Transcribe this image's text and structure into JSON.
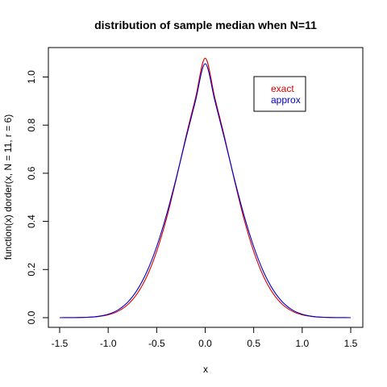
{
  "chart_data": {
    "type": "line",
    "title": "distribution of sample median when N=11",
    "xlabel": "x",
    "ylabel": "function(x) dorder(x, N = 11, r = 6)",
    "xlim": [
      -1.5,
      1.5
    ],
    "ylim": [
      0.0,
      1.1
    ],
    "x_ticks": [
      -1.5,
      -1.0,
      -0.5,
      0.0,
      0.5,
      1.0,
      1.5
    ],
    "x_tick_labels": [
      "-1.5",
      "-1.0",
      "-0.5",
      "0.0",
      "0.5",
      "1.0",
      "1.5"
    ],
    "y_ticks": [
      0.0,
      0.2,
      0.4,
      0.6,
      0.8,
      1.0
    ],
    "y_tick_labels": [
      "0.0",
      "0.2",
      "0.4",
      "0.6",
      "0.8",
      "1.0"
    ],
    "grid": false,
    "legend_position": "top-right",
    "x": [
      -1.5,
      -1.4,
      -1.3,
      -1.2,
      -1.1,
      -1.0,
      -0.9,
      -0.8,
      -0.7,
      -0.6,
      -0.5,
      -0.4,
      -0.3,
      -0.2,
      -0.1,
      0.0,
      0.1,
      0.2,
      0.3,
      0.4,
      0.5,
      0.6,
      0.7,
      0.8,
      0.9,
      1.0,
      1.1,
      1.2,
      1.3,
      1.4,
      1.5
    ],
    "series": [
      {
        "name": "exact",
        "color": "#dd0000",
        "values": [
          0.0,
          0.0002,
          0.0006,
          0.0018,
          0.0048,
          0.0118,
          0.0262,
          0.0535,
          0.1003,
          0.1724,
          0.2753,
          0.4102,
          0.5731,
          0.7494,
          0.9123,
          1.078,
          0.9123,
          0.7494,
          0.5731,
          0.4102,
          0.2753,
          0.1724,
          0.1003,
          0.0535,
          0.0262,
          0.0118,
          0.0048,
          0.0018,
          0.0006,
          0.0002,
          0.0
        ]
      },
      {
        "name": "approx",
        "color": "#0000cc",
        "values": [
          0.0,
          0.0002,
          0.0007,
          0.0021,
          0.0058,
          0.0142,
          0.0316,
          0.0635,
          0.1157,
          0.1919,
          0.2952,
          0.4254,
          0.578,
          0.742,
          0.9009,
          1.055,
          0.9009,
          0.742,
          0.578,
          0.4254,
          0.2952,
          0.1919,
          0.1157,
          0.0635,
          0.0316,
          0.0142,
          0.0058,
          0.0021,
          0.0007,
          0.0002,
          0.0
        ]
      }
    ]
  }
}
